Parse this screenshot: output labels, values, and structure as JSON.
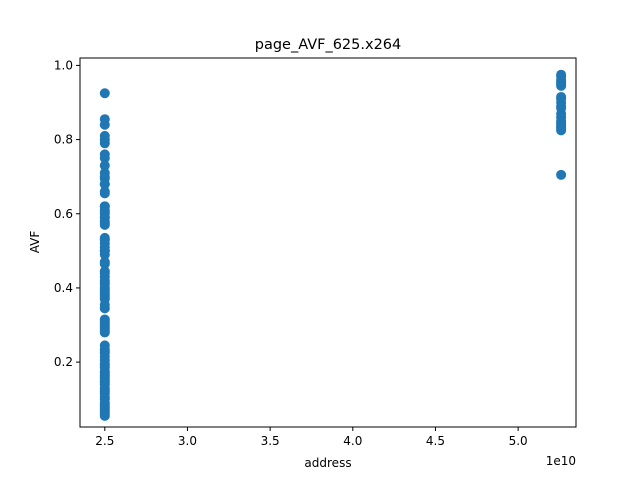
{
  "chart_data": {
    "type": "scatter",
    "title": "page_AVF_625.x264",
    "xlabel": "address",
    "ylabel": "AVF",
    "x_offset_label": "1e10",
    "xlim": [
      2.35,
      5.35
    ],
    "ylim": [
      0.025,
      1.02
    ],
    "x_ticks": [
      2.5,
      3.0,
      3.5,
      4.0,
      4.5,
      5.0
    ],
    "x_tick_labels": [
      "2.5",
      "3.0",
      "3.5",
      "4.0",
      "4.5",
      "5.0"
    ],
    "y_ticks": [
      0.2,
      0.4,
      0.6,
      0.8,
      1.0
    ],
    "y_tick_labels": [
      "0.2",
      "0.4",
      "0.6",
      "0.8",
      "1.0"
    ],
    "grid": false,
    "marker_color": "#1f77b4",
    "series": [
      {
        "x": [
          2.5,
          2.5,
          2.5,
          2.5,
          2.5,
          2.5,
          2.5,
          2.5,
          2.5,
          2.5,
          2.5,
          2.5,
          2.5,
          2.5,
          2.5,
          2.5,
          2.5,
          2.5,
          2.5,
          2.5,
          2.5,
          2.5,
          2.5,
          2.5,
          2.5,
          2.5,
          2.5,
          2.5,
          2.5,
          2.5,
          2.5,
          2.5,
          2.5,
          2.5,
          2.5,
          2.5,
          2.5,
          2.5,
          2.5,
          2.5,
          2.5,
          2.5,
          2.5,
          2.5,
          2.5,
          2.5,
          2.5,
          2.5,
          2.5,
          2.5,
          2.5,
          2.5,
          2.5,
          2.5,
          2.5,
          2.5,
          2.5,
          2.5,
          2.5,
          2.5,
          2.5,
          2.5,
          2.5,
          2.5,
          2.5,
          2.5,
          2.5,
          2.5,
          2.5,
          2.5,
          2.5,
          2.5,
          2.5,
          2.5,
          2.5,
          2.5,
          2.5,
          2.5,
          2.5,
          2.5,
          2.5,
          2.5,
          2.5,
          2.5,
          2.5,
          2.5,
          2.5,
          2.5,
          2.5,
          2.5,
          5.26,
          5.26,
          5.26,
          5.26,
          5.26,
          5.26,
          5.26,
          5.26,
          5.26,
          5.26,
          5.26,
          5.26,
          5.26,
          5.26,
          5.26,
          5.26,
          5.26,
          5.26,
          5.26,
          5.26
        ],
        "y": [
          0.925,
          0.855,
          0.84,
          0.81,
          0.8,
          0.79,
          0.75,
          0.73,
          0.71,
          0.7,
          0.68,
          0.66,
          0.62,
          0.61,
          0.6,
          0.59,
          0.58,
          0.57,
          0.535,
          0.53,
          0.52,
          0.5,
          0.49,
          0.47,
          0.445,
          0.44,
          0.42,
          0.41,
          0.4,
          0.39,
          0.38,
          0.37,
          0.345,
          0.315,
          0.31,
          0.3,
          0.29,
          0.28,
          0.245,
          0.235,
          0.225,
          0.215,
          0.19,
          0.185,
          0.175,
          0.17,
          0.16,
          0.15,
          0.14,
          0.13,
          0.12,
          0.1,
          0.08,
          0.075,
          0.07,
          0.065,
          0.06,
          0.055,
          0.62,
          0.605,
          0.59,
          0.53,
          0.5,
          0.465,
          0.43,
          0.395,
          0.375,
          0.305,
          0.295,
          0.23,
          0.195,
          0.165,
          0.145,
          0.125,
          0.105,
          0.085,
          0.76,
          0.695,
          0.655,
          0.575,
          0.51,
          0.415,
          0.385,
          0.285,
          0.205,
          0.155,
          0.115,
          0.09,
          0.68,
          0.355,
          0.975,
          0.97,
          0.96,
          0.955,
          0.95,
          0.945,
          0.915,
          0.91,
          0.9,
          0.89,
          0.885,
          0.87,
          0.86,
          0.85,
          0.845,
          0.84,
          0.835,
          0.83,
          0.825,
          0.705
        ]
      }
    ]
  }
}
